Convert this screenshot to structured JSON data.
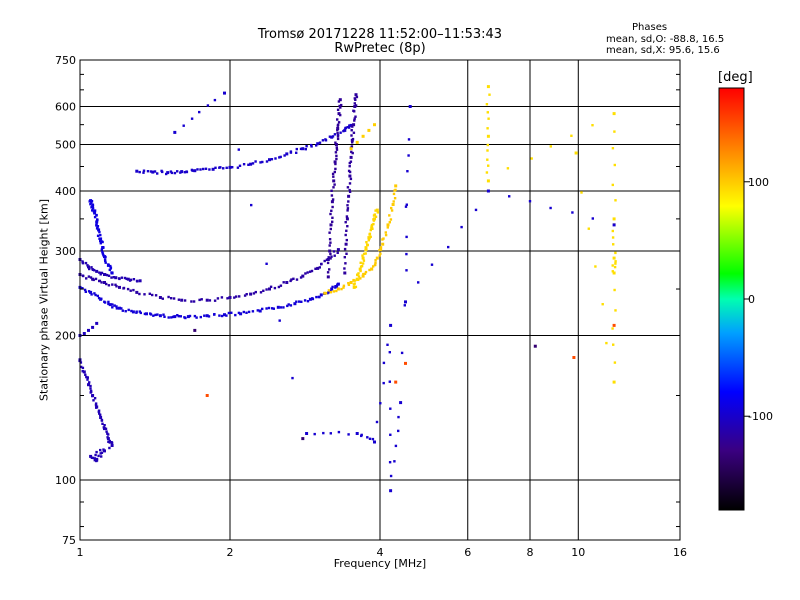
{
  "header": {
    "title": "Tromsø 20171228 11:52:00–11:53:43",
    "subtitle": "RwPretec (8p)",
    "phases_title": "Phases",
    "phases_o": "mean, sd,O: -88.8, 16.5",
    "phases_x": "mean, sd,X:  95.6, 15.6"
  },
  "colorbar": {
    "unit_label": "[deg]",
    "ticks": [
      {
        "value": 100,
        "label": "100"
      },
      {
        "value": 0,
        "label": "0"
      },
      {
        "value": -100,
        "label": "-100"
      }
    ],
    "range": [
      -180,
      180
    ]
  },
  "chart_data": {
    "type": "scatter",
    "title": "Tromsø 20171228 11:52:00–11:53:43",
    "subtitle": "RwPretec (8p)",
    "xlabel": "Frequency [MHz]",
    "ylabel": "Stationary phase Virtual Height [km]",
    "xscale": "log2",
    "yscale": "log",
    "xlim": [
      1,
      16
    ],
    "ylim": [
      75,
      750
    ],
    "grid": true,
    "x_ticks": [
      {
        "value": 1,
        "label": "1",
        "grid": false
      },
      {
        "value": 2,
        "label": "2",
        "grid": true
      },
      {
        "value": 4,
        "label": "4",
        "grid": true
      },
      {
        "value": 6,
        "label": "6",
        "grid": true
      },
      {
        "value": 8,
        "label": "8",
        "grid": true
      },
      {
        "value": 10,
        "label": "10",
        "grid": true
      },
      {
        "value": 16,
        "label": "16",
        "grid": false
      }
    ],
    "y_ticks": [
      {
        "value": 75,
        "label": "75",
        "grid": false
      },
      {
        "value": 100,
        "label": "100",
        "grid": true
      },
      {
        "value": 200,
        "label": "200",
        "grid": true
      },
      {
        "value": 300,
        "label": "300",
        "grid": true
      },
      {
        "value": 400,
        "label": "400",
        "grid": true
      },
      {
        "value": 500,
        "label": "500",
        "grid": true
      },
      {
        "value": 600,
        "label": "600",
        "grid": true
      },
      {
        "value": 750,
        "label": "750",
        "grid": false
      }
    ],
    "series": [
      {
        "color_phase": -95,
        "points": [
          [
            1.0,
            252
          ],
          [
            1.05,
            246
          ],
          [
            1.1,
            238
          ],
          [
            1.15,
            232
          ],
          [
            1.2,
            228
          ],
          [
            1.28,
            224
          ],
          [
            1.36,
            222
          ],
          [
            1.45,
            220
          ],
          [
            1.55,
            219
          ],
          [
            1.65,
            219
          ],
          [
            1.8,
            220
          ],
          [
            1.95,
            221
          ],
          [
            2.1,
            222
          ],
          [
            2.3,
            225
          ],
          [
            2.5,
            229
          ],
          [
            2.7,
            233
          ],
          [
            2.9,
            238
          ],
          [
            3.05,
            243
          ],
          [
            3.2,
            250
          ],
          [
            3.3,
            256
          ]
        ]
      },
      {
        "color_phase": -115,
        "points": [
          [
            1.0,
            268
          ],
          [
            1.06,
            262
          ],
          [
            1.12,
            258
          ],
          [
            1.2,
            252
          ],
          [
            1.3,
            246
          ],
          [
            1.45,
            240
          ],
          [
            1.6,
            237
          ],
          [
            1.8,
            237
          ],
          [
            2.0,
            240
          ],
          [
            2.2,
            244
          ],
          [
            2.4,
            250
          ],
          [
            2.6,
            258
          ],
          [
            2.8,
            266
          ],
          [
            3.0,
            276
          ],
          [
            3.15,
            288
          ],
          [
            3.3,
            302
          ]
        ]
      },
      {
        "color_phase": -110,
        "points": [
          [
            1.0,
            288
          ],
          [
            1.04,
            278
          ],
          [
            1.08,
            272
          ],
          [
            1.12,
            268
          ],
          [
            1.18,
            264
          ],
          [
            1.25,
            262
          ],
          [
            1.32,
            260
          ]
        ]
      },
      {
        "color_phase": -105,
        "points": [
          [
            1.0,
            200
          ],
          [
            1.02,
            202
          ],
          [
            1.04,
            205
          ],
          [
            1.06,
            208
          ],
          [
            1.08,
            212
          ]
        ]
      },
      {
        "color_phase": -92,
        "points": [
          [
            1.05,
            382
          ],
          [
            1.06,
            372
          ],
          [
            1.07,
            360
          ],
          [
            1.08,
            345
          ],
          [
            1.09,
            332
          ],
          [
            1.1,
            318
          ],
          [
            1.11,
            305
          ],
          [
            1.12,
            292
          ],
          [
            1.14,
            280
          ],
          [
            1.16,
            270
          ]
        ]
      },
      {
        "color_phase": -100,
        "points": [
          [
            1.3,
            440
          ],
          [
            1.4,
            438
          ],
          [
            1.5,
            437
          ],
          [
            1.6,
            439
          ],
          [
            1.7,
            441
          ],
          [
            1.85,
            444
          ],
          [
            2.0,
            448
          ],
          [
            2.2,
            455
          ],
          [
            2.4,
            465
          ],
          [
            2.6,
            478
          ],
          [
            2.8,
            490
          ],
          [
            3.0,
            502
          ],
          [
            3.2,
            518
          ],
          [
            3.4,
            535
          ],
          [
            3.5,
            548
          ]
        ]
      },
      {
        "color_phase": -120,
        "points": [
          [
            3.15,
            265
          ],
          [
            3.17,
            300
          ],
          [
            3.19,
            340
          ],
          [
            3.21,
            380
          ],
          [
            3.23,
            420
          ],
          [
            3.25,
            460
          ],
          [
            3.27,
            500
          ],
          [
            3.29,
            540
          ],
          [
            3.31,
            580
          ],
          [
            3.33,
            620
          ]
        ]
      },
      {
        "color_phase": -118,
        "points": [
          [
            3.4,
            270
          ],
          [
            3.42,
            310
          ],
          [
            3.44,
            350
          ],
          [
            3.46,
            390
          ],
          [
            3.48,
            430
          ],
          [
            3.5,
            470
          ],
          [
            3.52,
            510
          ],
          [
            3.54,
            550
          ],
          [
            3.56,
            600
          ],
          [
            3.58,
            635
          ]
        ]
      },
      {
        "color_phase": 100,
        "points": [
          [
            3.1,
            245
          ],
          [
            3.3,
            250
          ],
          [
            3.5,
            258
          ],
          [
            3.7,
            266
          ],
          [
            3.85,
            275
          ],
          [
            3.95,
            290
          ],
          [
            4.05,
            310
          ],
          [
            4.15,
            340
          ],
          [
            4.25,
            375
          ],
          [
            4.3,
            410
          ]
        ]
      },
      {
        "color_phase": 95,
        "points": [
          [
            3.55,
            252
          ],
          [
            3.6,
            262
          ],
          [
            3.65,
            275
          ],
          [
            3.7,
            290
          ],
          [
            3.75,
            305
          ],
          [
            3.8,
            320
          ],
          [
            3.85,
            335
          ],
          [
            3.9,
            350
          ],
          [
            3.95,
            365
          ]
        ]
      },
      {
        "color_phase": 98,
        "points": [
          [
            3.5,
            490
          ],
          [
            3.6,
            505
          ],
          [
            3.7,
            520
          ],
          [
            3.8,
            535
          ],
          [
            3.9,
            550
          ]
        ]
      },
      {
        "color_phase": -108,
        "points": [
          [
            1.0,
            178
          ],
          [
            1.02,
            168
          ],
          [
            1.04,
            158
          ],
          [
            1.06,
            150
          ],
          [
            1.08,
            142
          ],
          [
            1.1,
            135
          ],
          [
            1.12,
            128
          ],
          [
            1.14,
            122
          ],
          [
            1.16,
            118
          ],
          [
            1.05,
            112
          ],
          [
            1.08,
            110
          ],
          [
            1.12,
            115
          ]
        ]
      },
      {
        "color_phase": 92,
        "points": [
          [
            6.6,
            660
          ],
          [
            6.6,
            520
          ],
          [
            6.6,
            420
          ],
          [
            11.8,
            580
          ],
          [
            11.8,
            350
          ],
          [
            11.8,
            290
          ],
          [
            11.8,
            270
          ],
          [
            11.8,
            160
          ],
          [
            9.9,
            480
          ]
        ]
      },
      {
        "color_phase": -98,
        "points": [
          [
            1.55,
            530
          ],
          [
            1.95,
            640
          ],
          [
            2.85,
            125
          ],
          [
            3.6,
            125
          ],
          [
            3.9,
            120
          ],
          [
            4.2,
            210
          ],
          [
            4.2,
            95
          ],
          [
            4.4,
            145
          ],
          [
            4.6,
            600
          ],
          [
            4.5,
            235
          ],
          [
            6.6,
            400
          ],
          [
            11.8,
            340
          ]
        ]
      },
      {
        "color_phase": 150,
        "points": [
          [
            1.8,
            150
          ],
          [
            4.3,
            160
          ],
          [
            4.5,
            175
          ],
          [
            9.8,
            180
          ],
          [
            11.8,
            210
          ]
        ]
      },
      {
        "color_phase": -135,
        "points": [
          [
            8.2,
            190
          ],
          [
            1.7,
            205
          ],
          [
            2.8,
            122
          ]
        ]
      }
    ]
  }
}
